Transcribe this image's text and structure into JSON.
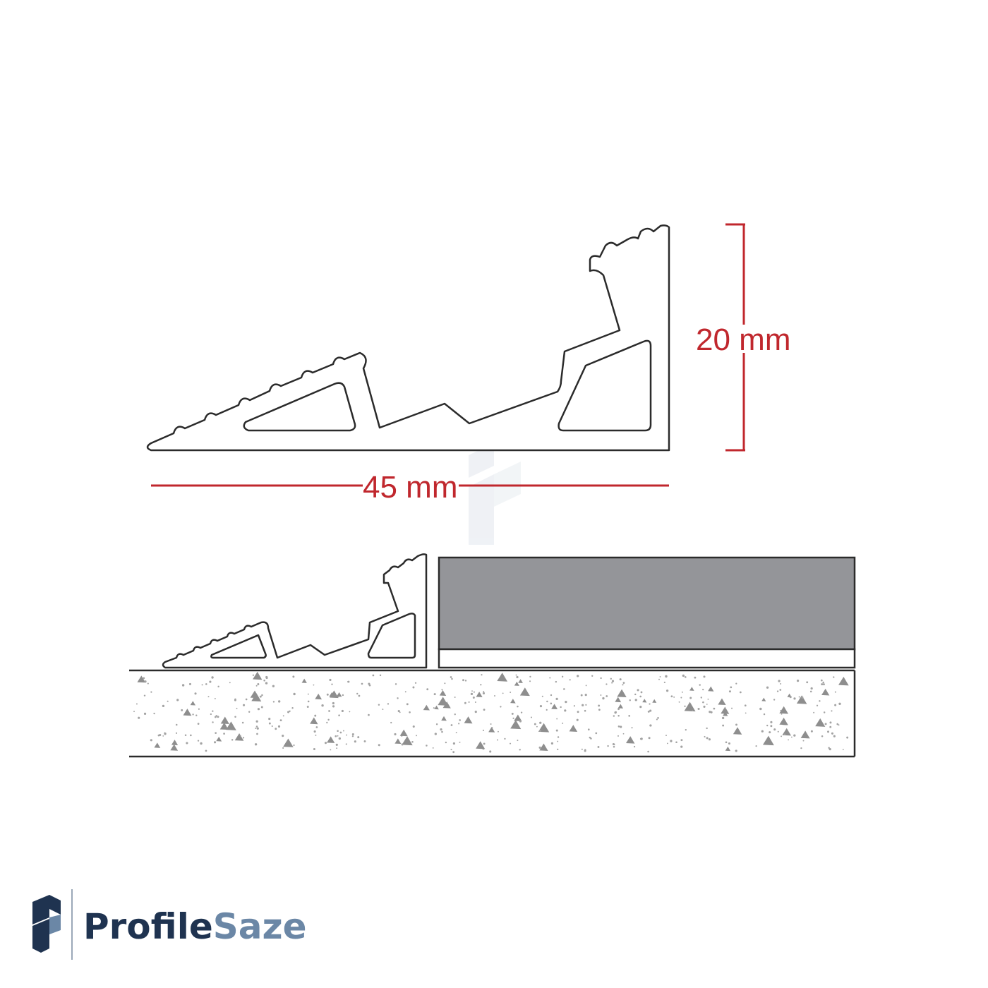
{
  "dimensions": {
    "height_label": "20 mm",
    "width_label": "45 mm"
  },
  "brand": {
    "name_part1": "Profile",
    "name_part2": "Saze"
  },
  "colors": {
    "dimension_red": "#c0272d",
    "outline": "#2b2b2b",
    "tile_grey": "#949599",
    "brand_dark": "#1f3350",
    "brand_light": "#6b87a6"
  }
}
